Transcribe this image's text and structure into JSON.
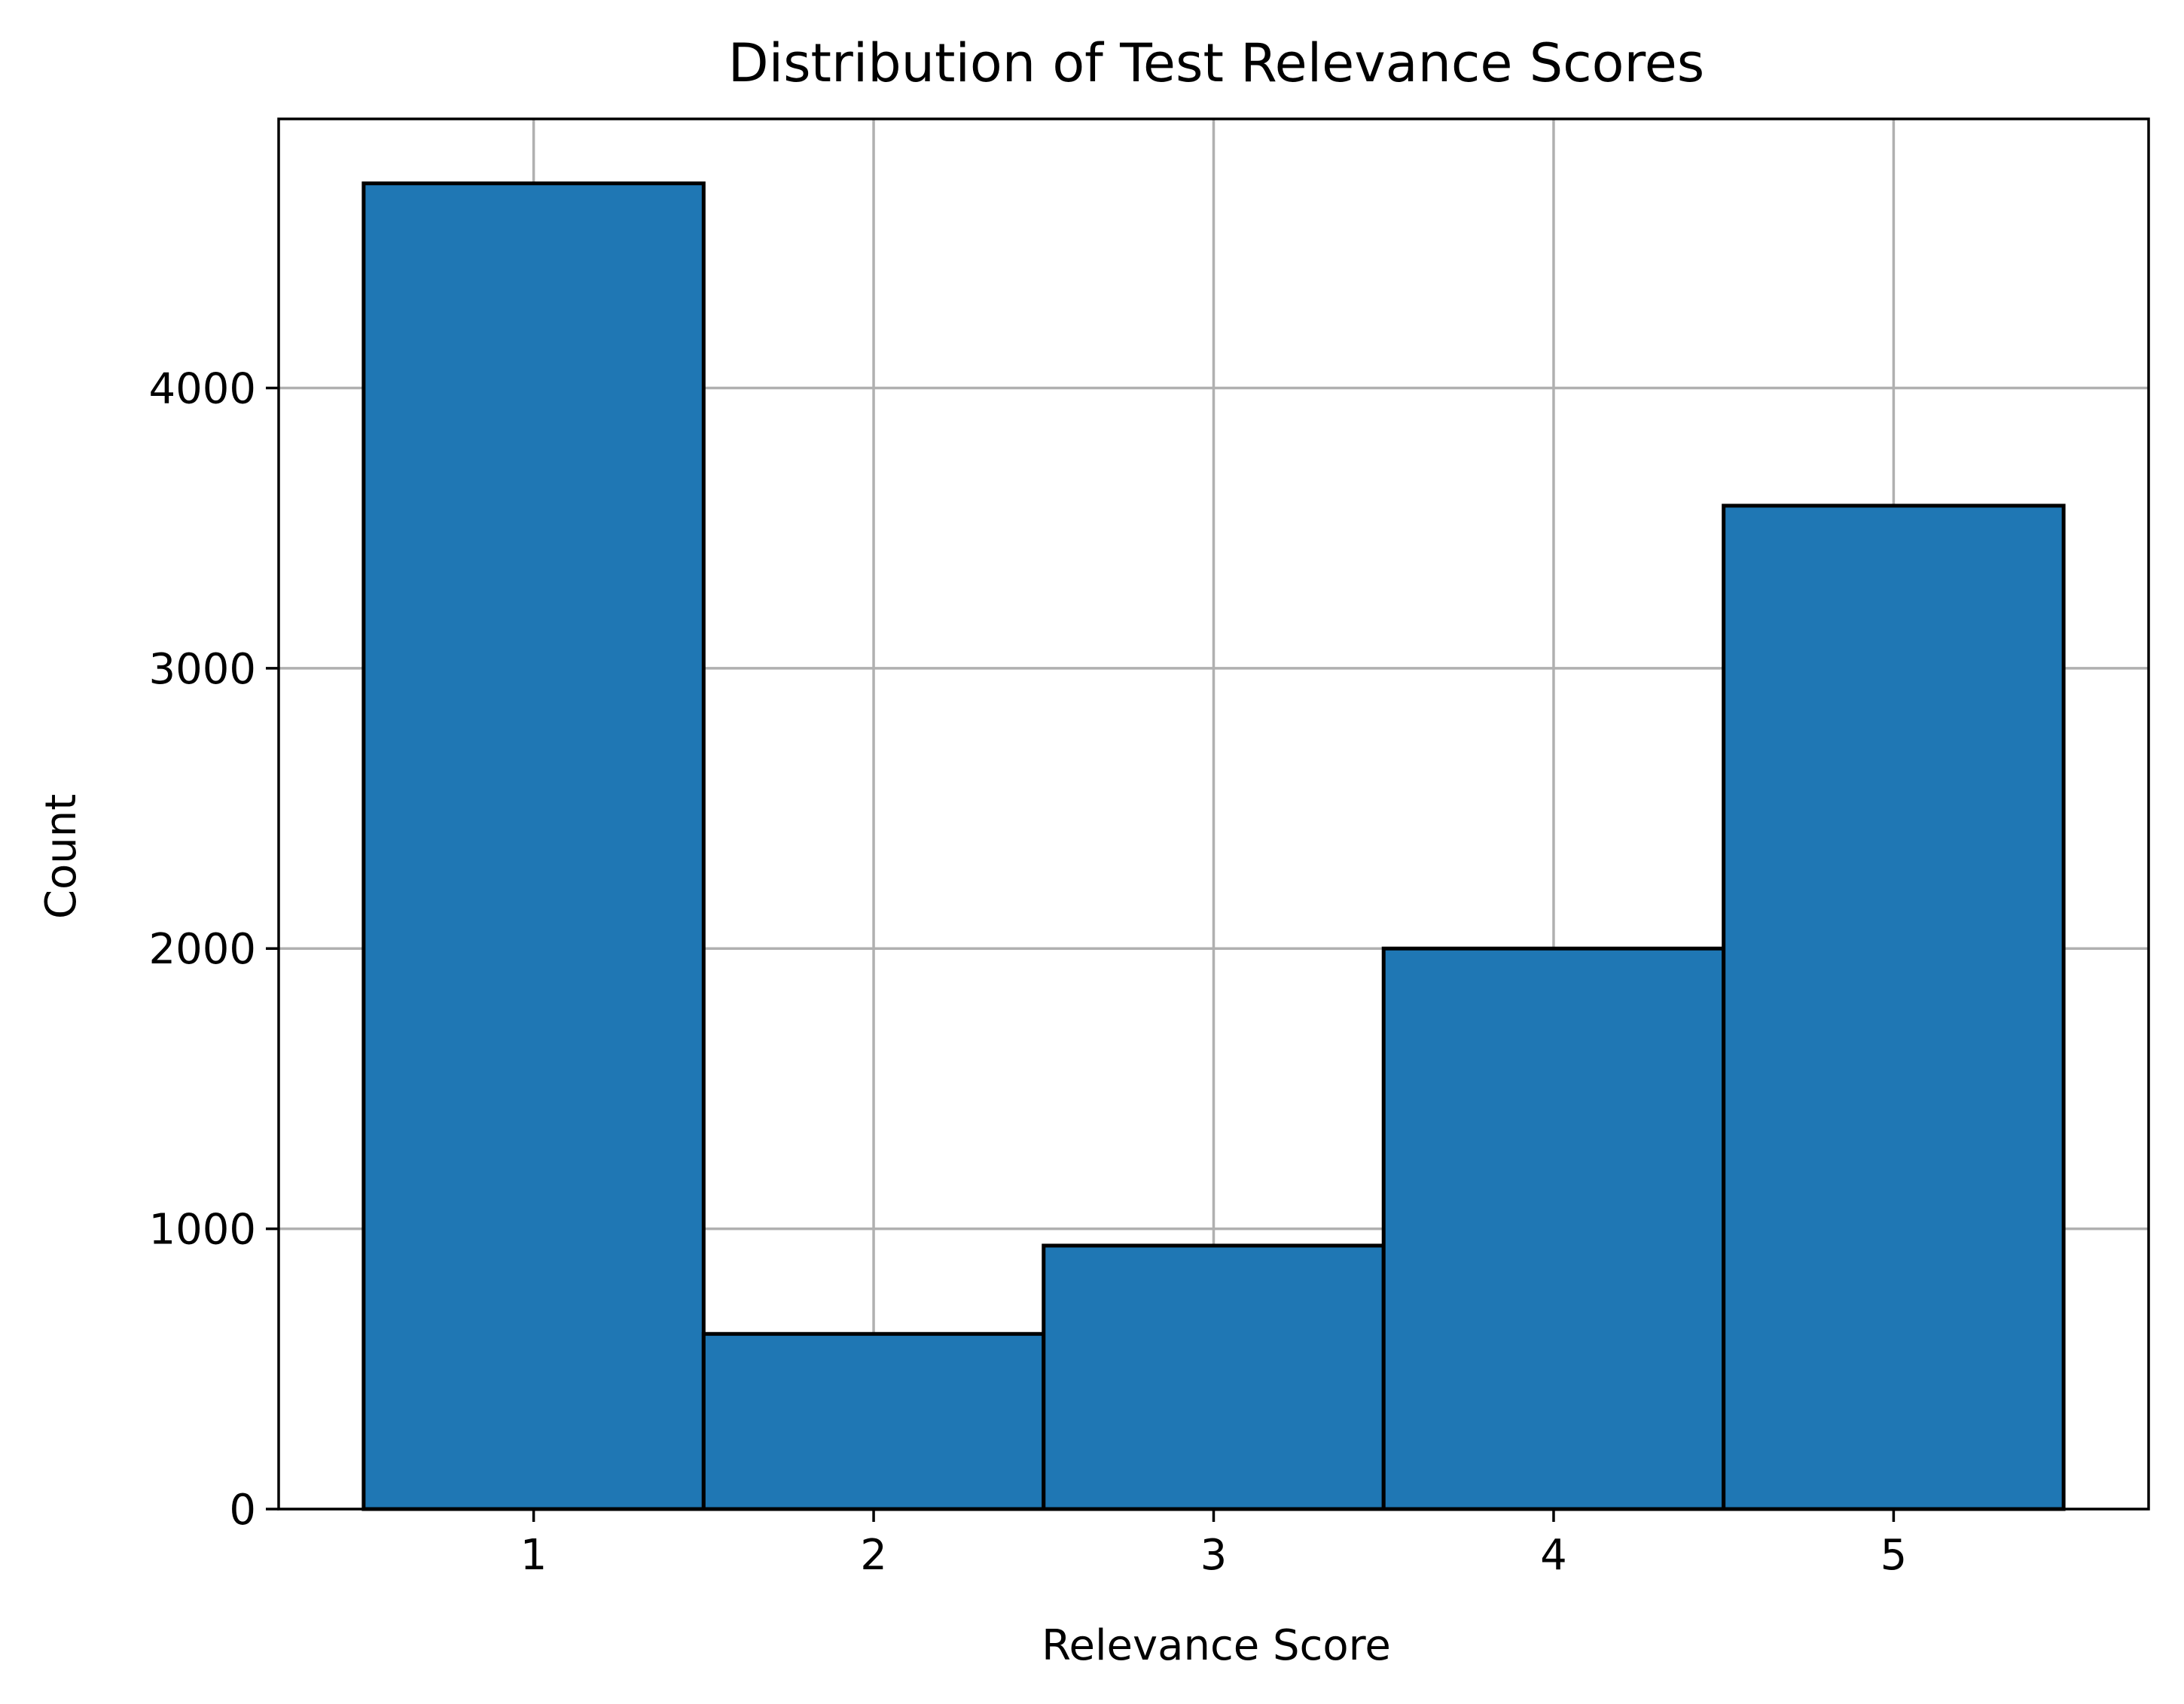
{
  "chart_data": {
    "type": "bar",
    "title": "Distribution of Test Relevance Scores",
    "xlabel": "Relevance Score",
    "ylabel": "Count",
    "categories": [
      "1",
      "2",
      "3",
      "4",
      "5"
    ],
    "x": [
      1,
      2,
      3,
      4,
      5
    ],
    "values": [
      4730,
      625,
      940,
      2000,
      3580
    ],
    "xlim": [
      0.25,
      5.75
    ],
    "ylim": [
      0,
      4960
    ],
    "xticks": [
      1,
      2,
      3,
      4,
      5
    ],
    "yticks": [
      0,
      1000,
      2000,
      3000,
      4000
    ],
    "bar_width": 1,
    "grid": true,
    "legend": "none",
    "colors": {
      "bar_fill": "#1f77b4",
      "bar_edge": "#000000",
      "grid": "#b0b0b0"
    }
  }
}
